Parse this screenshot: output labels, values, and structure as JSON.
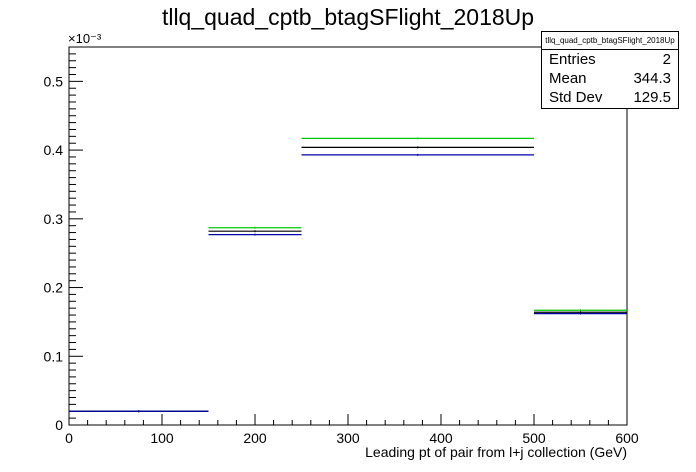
{
  "chart_data": {
    "type": "bar",
    "title": "tllq_quad_cptb_btagSFlight_2018Up",
    "xlabel": "Leading pt of pair from l+j collection (GeV)",
    "ylabel": "",
    "y_multiplier": "×10⁻³",
    "xlim": [
      0,
      600
    ],
    "ylim": [
      0,
      0.00055
    ],
    "x_ticks": [
      0,
      100,
      200,
      300,
      400,
      500,
      600
    ],
    "y_ticks": [
      0,
      0.1,
      0.2,
      0.3,
      0.4,
      0.5
    ],
    "y_tick_labels": [
      "0",
      "0.1",
      "0.2",
      "0.3",
      "0.4",
      "0.5"
    ],
    "bins": [
      [
        0,
        150
      ],
      [
        150,
        250
      ],
      [
        250,
        500
      ],
      [
        500,
        600
      ]
    ],
    "series": [
      {
        "color": "#00cc00",
        "values": [
          2e-05,
          0.000287,
          0.000417,
          0.000167
        ]
      },
      {
        "color": "#000000",
        "values": [
          2e-05,
          0.000282,
          0.000404,
          0.000164
        ]
      },
      {
        "color": "#0000aa",
        "values": [
          2e-05,
          0.000277,
          0.000393,
          0.000162
        ]
      }
    ],
    "grid": false,
    "legend": "none"
  },
  "stats": {
    "name": "tllq_quad_cptb_btagSFlight_2018Up",
    "rows": [
      {
        "label": "Entries",
        "value": "2"
      },
      {
        "label": "Mean",
        "value": "344.3"
      },
      {
        "label": "Std Dev",
        "value": "129.5"
      }
    ]
  }
}
